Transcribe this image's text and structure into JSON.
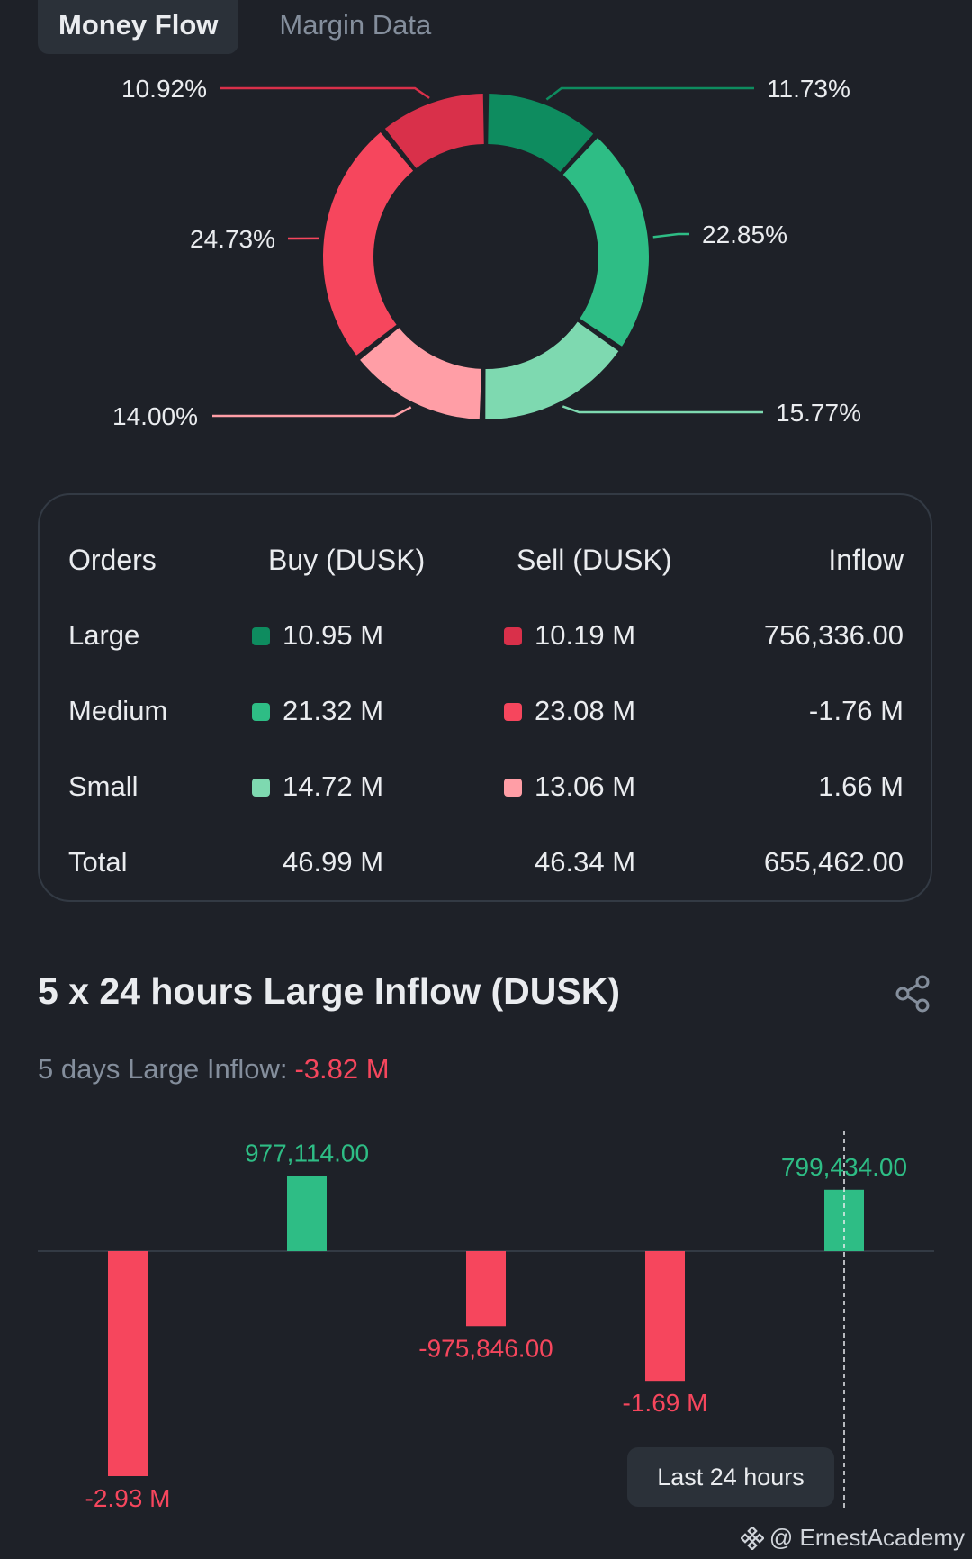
{
  "tabs": [
    {
      "label": "Money Flow",
      "active": true
    },
    {
      "label": "Margin Data",
      "active": false
    }
  ],
  "donut": {
    "segments": [
      {
        "name": "Large Buy",
        "percent": 11.73,
        "label": "11.73%",
        "color": "#0e8c5f"
      },
      {
        "name": "Medium Buy",
        "percent": 22.85,
        "label": "22.85%",
        "color": "#2ebd85"
      },
      {
        "name": "Small Buy",
        "percent": 15.77,
        "label": "15.77%",
        "color": "#7ed9b0"
      },
      {
        "name": "Small Sell",
        "percent": 14.0,
        "label": "14.00%",
        "color": "#ff9ea6"
      },
      {
        "name": "Medium Sell",
        "percent": 24.73,
        "label": "24.73%",
        "color": "#f6465d"
      },
      {
        "name": "Large Sell",
        "percent": 10.92,
        "label": "10.92%",
        "color": "#d9304a"
      }
    ]
  },
  "orders": {
    "header": {
      "orders": "Orders",
      "buy": "Buy (DUSK)",
      "sell": "Sell (DUSK)",
      "inflow": "Inflow"
    },
    "rows": [
      {
        "label": "Large",
        "buy": "10.95 M",
        "sell": "10.19 M",
        "inflow": "756,336.00",
        "buy_color": "#0e8c5f",
        "sell_color": "#d9304a"
      },
      {
        "label": "Medium",
        "buy": "21.32 M",
        "sell": "23.08 M",
        "inflow": "-1.76 M",
        "buy_color": "#2ebd85",
        "sell_color": "#f6465d"
      },
      {
        "label": "Small",
        "buy": "14.72 M",
        "sell": "13.06 M",
        "inflow": "1.66 M",
        "buy_color": "#7ed9b0",
        "sell_color": "#ff9ea6"
      }
    ],
    "total": {
      "label": "Total",
      "buy": "46.99 M",
      "sell": "46.34 M",
      "inflow": "655,462.00"
    }
  },
  "large_inflow": {
    "title": "5 x 24 hours Large Inflow (DUSK)",
    "five_days_label": "5 days Large Inflow:",
    "five_days_value": "-3.82 M",
    "last24_label": "Last 24 hours"
  },
  "chart_data": {
    "type": "bar",
    "values": [
      -2930000,
      977114,
      -975846,
      -1690000,
      799434
    ],
    "labels": [
      "-2.93 M",
      "977,114.00",
      "-975,846.00",
      "-1.69 M",
      "799,434.00"
    ],
    "positive_color": "#2ebd85",
    "negative_color": "#f6465d"
  },
  "watermark": "@ ErnestAcademy"
}
